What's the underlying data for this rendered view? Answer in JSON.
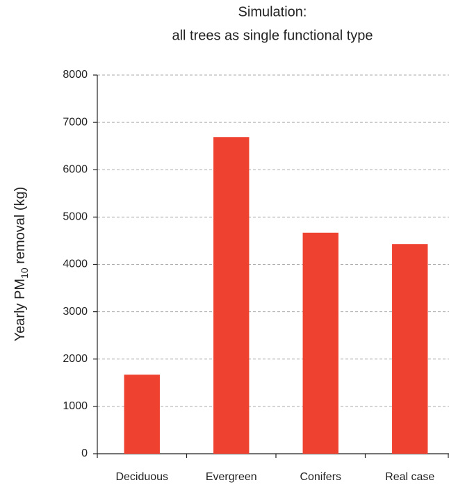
{
  "chart_data": {
    "type": "bar",
    "title": [
      "Simulation:",
      "all trees as single functional type"
    ],
    "y_label": {
      "text": "Yearly PM",
      "subscript": "10",
      "text_after": " removal (kg)"
    },
    "categories": [
      "Deciduous",
      "Evergreen",
      "Conifers",
      "Real case"
    ],
    "values": [
      1670,
      6690,
      4670,
      4430
    ],
    "color": "#ef4130",
    "ylim": [
      0,
      8000
    ],
    "yticks": [
      0,
      1000,
      2000,
      3000,
      4000,
      5000,
      6000,
      7000,
      8000
    ],
    "grid": true
  }
}
